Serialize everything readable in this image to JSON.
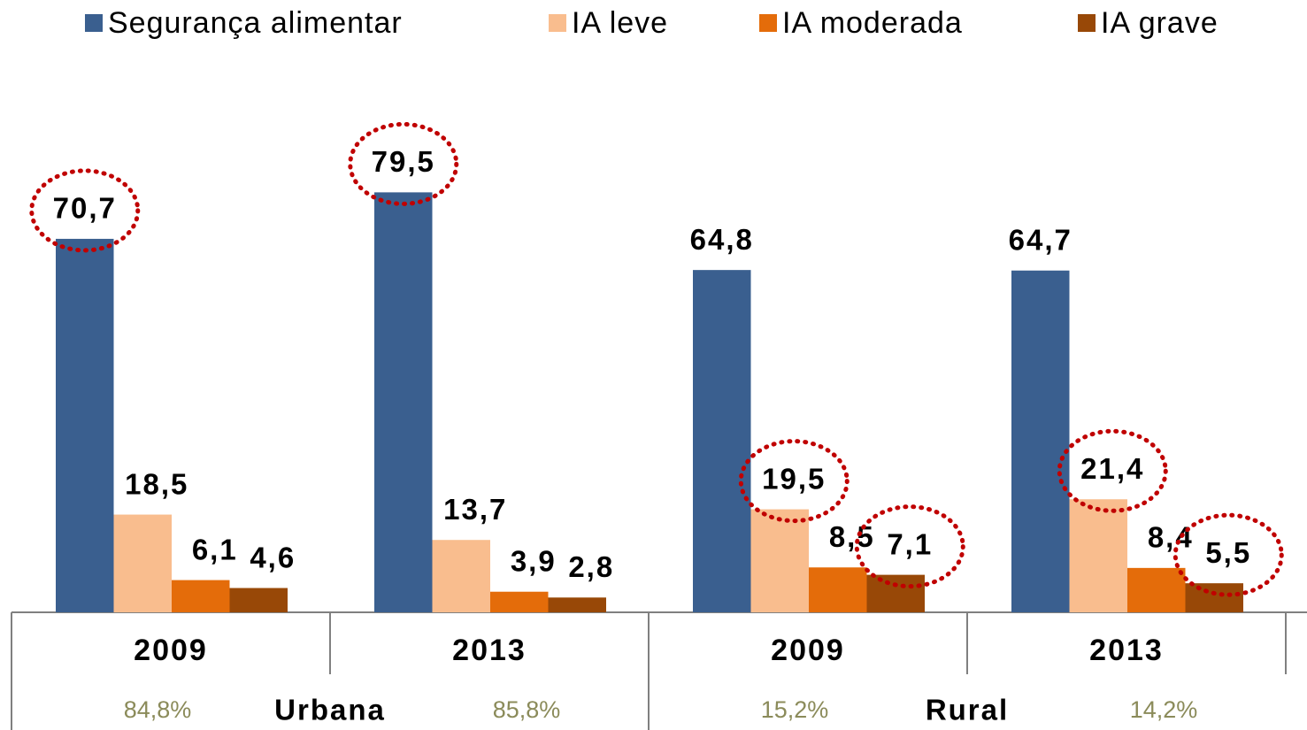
{
  "chart_data": {
    "type": "bar",
    "categories": [
      "2009",
      "2013",
      "2009",
      "2013"
    ],
    "category_notes": [
      "84,8%",
      "85,8%",
      "15,2%",
      "14,2%"
    ],
    "groups": [
      {
        "name": "Urbana",
        "span": [
          0,
          1
        ]
      },
      {
        "name": "Rural",
        "span": [
          2,
          3
        ]
      }
    ],
    "series": [
      {
        "name": "Segurança alimentar",
        "color": "#3a5f8f",
        "values": [
          70.7,
          79.5,
          64.8,
          64.7
        ],
        "value_labels": [
          "70,7",
          "79,5",
          "64,8",
          "64,7"
        ],
        "highlight": [
          true,
          true,
          false,
          false
        ]
      },
      {
        "name": "IA leve",
        "color": "#f9bd8e",
        "values": [
          18.5,
          13.7,
          19.5,
          21.4
        ],
        "value_labels": [
          "18,5",
          "13,7",
          "19,5",
          "21,4"
        ],
        "highlight": [
          false,
          false,
          true,
          true
        ]
      },
      {
        "name": "IA moderada",
        "color": "#e46c0a",
        "values": [
          6.1,
          3.9,
          8.5,
          8.4
        ],
        "value_labels": [
          "6,1",
          "3,9",
          "8,5",
          "8,4"
        ],
        "highlight": [
          false,
          false,
          false,
          false
        ]
      },
      {
        "name": "IA grave",
        "color": "#984807",
        "values": [
          4.6,
          2.8,
          7.1,
          5.5
        ],
        "value_labels": [
          "4,6",
          "2,8",
          "7,1",
          "5,5"
        ],
        "highlight": [
          false,
          false,
          true,
          true
        ]
      }
    ],
    "ylim": [
      0,
      100
    ],
    "legend": "top"
  }
}
